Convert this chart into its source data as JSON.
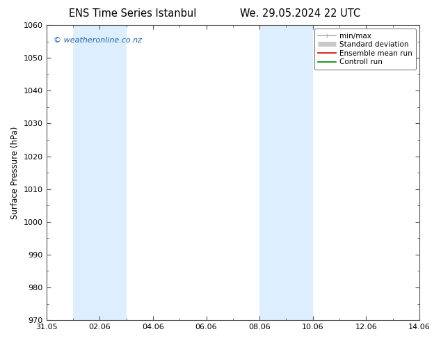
{
  "title_left": "ENS Time Series Istanbul",
  "title_right": "We. 29.05.2024 22 UTC",
  "ylabel": "Surface Pressure (hPa)",
  "ylim": [
    970,
    1060
  ],
  "yticks": [
    970,
    980,
    990,
    1000,
    1010,
    1020,
    1030,
    1040,
    1050,
    1060
  ],
  "xlim_num": [
    0,
    14
  ],
  "xtick_labels": [
    "31.05",
    "02.06",
    "04.06",
    "06.06",
    "08.06",
    "10.06",
    "12.06",
    "14.06"
  ],
  "xtick_positions": [
    0,
    2,
    4,
    6,
    8,
    10,
    12,
    14
  ],
  "shaded_bands": [
    {
      "xmin": 1.0,
      "xmax": 3.0,
      "color": "#ddeeff"
    },
    {
      "xmin": 8.0,
      "xmax": 10.0,
      "color": "#ddeeff"
    }
  ],
  "watermark": "© weatheronline.co.nz",
  "legend_items": [
    {
      "label": "min/max",
      "color": "#b0b0b0",
      "lw": 1.2
    },
    {
      "label": "Standard deviation",
      "color": "#c8c8c8",
      "lw": 5
    },
    {
      "label": "Ensemble mean run",
      "color": "#cc0000",
      "lw": 1.2
    },
    {
      "label": "Controll run",
      "color": "#008000",
      "lw": 1.2
    }
  ],
  "bg_color": "#ffffff",
  "plot_bg_color": "#ffffff",
  "spine_color": "#555555",
  "title_fontsize": 10.5,
  "axis_label_fontsize": 8.5,
  "tick_fontsize": 8,
  "legend_fontsize": 7.5,
  "watermark_fontsize": 8,
  "watermark_color": "#1a5fa8"
}
